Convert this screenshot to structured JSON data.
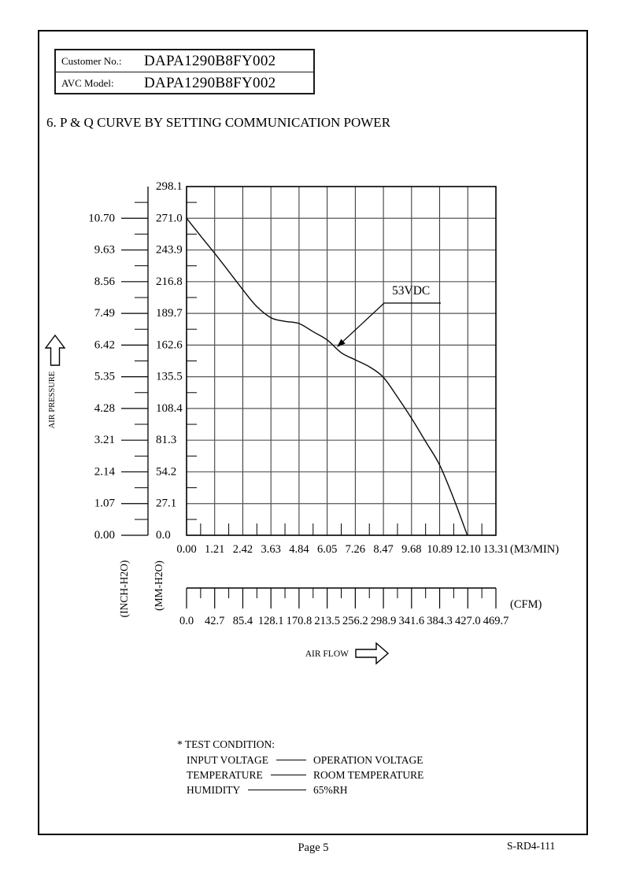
{
  "page": {
    "header": {
      "customer_label": "Customer No.:",
      "customer_value": "DAPA1290B8FY002",
      "model_label": "AVC Model:",
      "model_value": "DAPA1290B8FY002"
    },
    "title": "6. P & Q CURVE BY SETTING COMMUNICATION POWER",
    "footer": {
      "page": "Page 5",
      "doc_code": "S-RD4-111"
    }
  },
  "chart_data": {
    "type": "line",
    "title": "P & Q curve (fan static pressure vs. air flow)",
    "grid": "on",
    "annotation": "53VDC",
    "y_axis_inch": {
      "label": "(INCH-H2O)",
      "ticks": [
        "10.70",
        "9.63",
        "8.56",
        "7.49",
        "6.42",
        "5.35",
        "4.28",
        "3.21",
        "2.14",
        "1.07",
        "0.00"
      ]
    },
    "y_axis_mm": {
      "label": "(MM-H2O)",
      "ticks": [
        "298.1",
        "271.0",
        "243.9",
        "216.8",
        "189.7",
        "162.6",
        "135.5",
        "108.4",
        "81.3",
        "54.2",
        "27.1",
        "0.0"
      ],
      "range": [
        0,
        298.1
      ]
    },
    "x_axis_m3min": {
      "label": "(M3/MIN)",
      "ticks": [
        "0.00",
        "1.21",
        "2.42",
        "3.63",
        "4.84",
        "6.05",
        "7.26",
        "8.47",
        "9.68",
        "10.89",
        "12.10",
        "13.31"
      ],
      "range": [
        0,
        13.31
      ]
    },
    "x_axis_cfm": {
      "label": "(CFM)",
      "ticks": [
        "0.0",
        "42.7",
        "85.4",
        "128.1",
        "170.8",
        "213.5",
        "256.2",
        "298.9",
        "341.6",
        "384.3",
        "427.0",
        "469.7"
      ],
      "range": [
        0,
        469.7
      ]
    },
    "axis_arrow_labels": {
      "y": "AIR PRESSURE",
      "x": "AIR FLOW"
    },
    "series": [
      {
        "name": "53VDC",
        "x_unit": "M3/MIN",
        "y_unit": "MM-H2O",
        "points": [
          [
            0.0,
            271
          ],
          [
            0.6,
            256
          ],
          [
            1.21,
            241
          ],
          [
            1.8,
            226
          ],
          [
            2.42,
            210
          ],
          [
            3.0,
            196
          ],
          [
            3.63,
            186
          ],
          [
            4.2,
            183
          ],
          [
            4.84,
            181
          ],
          [
            5.45,
            174
          ],
          [
            6.05,
            167
          ],
          [
            6.66,
            156
          ],
          [
            7.26,
            150
          ],
          [
            7.87,
            144
          ],
          [
            8.47,
            135
          ],
          [
            9.08,
            118
          ],
          [
            9.68,
            100
          ],
          [
            10.29,
            80
          ],
          [
            10.89,
            60
          ],
          [
            11.5,
            31
          ],
          [
            12.08,
            0
          ]
        ]
      }
    ]
  },
  "test_condition": {
    "heading": "* TEST CONDITION:",
    "rows": [
      {
        "label": "INPUT VOLTAGE",
        "value": "OPERATION VOLTAGE"
      },
      {
        "label": "TEMPERATURE",
        "value": "ROOM TEMPERATURE"
      },
      {
        "label": "HUMIDITY",
        "value": "65%RH"
      }
    ]
  }
}
